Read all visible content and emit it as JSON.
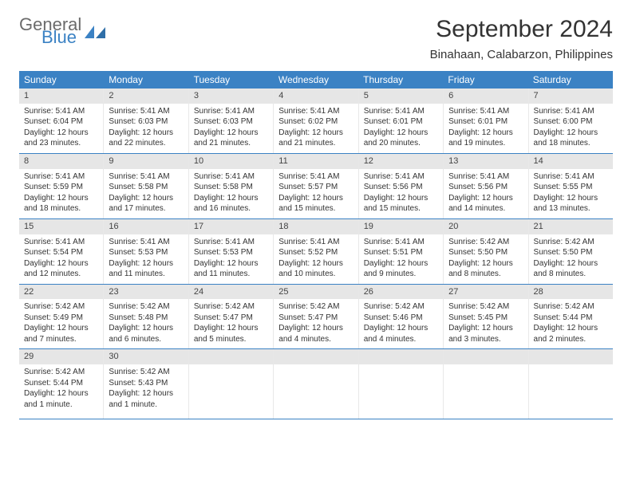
{
  "brand": {
    "general": "General",
    "blue": "Blue"
  },
  "header": {
    "title": "September 2024",
    "location": "Binahaan, Calabarzon, Philippines"
  },
  "colors": {
    "accent": "#3b82c4",
    "gray_bar": "#e6e6e6",
    "text": "#333333"
  },
  "weekdays": [
    "Sunday",
    "Monday",
    "Tuesday",
    "Wednesday",
    "Thursday",
    "Friday",
    "Saturday"
  ],
  "weeks": [
    [
      {
        "n": "1",
        "sr": "Sunrise: 5:41 AM",
        "ss": "Sunset: 6:04 PM",
        "d1": "Daylight: 12 hours",
        "d2": "and 23 minutes."
      },
      {
        "n": "2",
        "sr": "Sunrise: 5:41 AM",
        "ss": "Sunset: 6:03 PM",
        "d1": "Daylight: 12 hours",
        "d2": "and 22 minutes."
      },
      {
        "n": "3",
        "sr": "Sunrise: 5:41 AM",
        "ss": "Sunset: 6:03 PM",
        "d1": "Daylight: 12 hours",
        "d2": "and 21 minutes."
      },
      {
        "n": "4",
        "sr": "Sunrise: 5:41 AM",
        "ss": "Sunset: 6:02 PM",
        "d1": "Daylight: 12 hours",
        "d2": "and 21 minutes."
      },
      {
        "n": "5",
        "sr": "Sunrise: 5:41 AM",
        "ss": "Sunset: 6:01 PM",
        "d1": "Daylight: 12 hours",
        "d2": "and 20 minutes."
      },
      {
        "n": "6",
        "sr": "Sunrise: 5:41 AM",
        "ss": "Sunset: 6:01 PM",
        "d1": "Daylight: 12 hours",
        "d2": "and 19 minutes."
      },
      {
        "n": "7",
        "sr": "Sunrise: 5:41 AM",
        "ss": "Sunset: 6:00 PM",
        "d1": "Daylight: 12 hours",
        "d2": "and 18 minutes."
      }
    ],
    [
      {
        "n": "8",
        "sr": "Sunrise: 5:41 AM",
        "ss": "Sunset: 5:59 PM",
        "d1": "Daylight: 12 hours",
        "d2": "and 18 minutes."
      },
      {
        "n": "9",
        "sr": "Sunrise: 5:41 AM",
        "ss": "Sunset: 5:58 PM",
        "d1": "Daylight: 12 hours",
        "d2": "and 17 minutes."
      },
      {
        "n": "10",
        "sr": "Sunrise: 5:41 AM",
        "ss": "Sunset: 5:58 PM",
        "d1": "Daylight: 12 hours",
        "d2": "and 16 minutes."
      },
      {
        "n": "11",
        "sr": "Sunrise: 5:41 AM",
        "ss": "Sunset: 5:57 PM",
        "d1": "Daylight: 12 hours",
        "d2": "and 15 minutes."
      },
      {
        "n": "12",
        "sr": "Sunrise: 5:41 AM",
        "ss": "Sunset: 5:56 PM",
        "d1": "Daylight: 12 hours",
        "d2": "and 15 minutes."
      },
      {
        "n": "13",
        "sr": "Sunrise: 5:41 AM",
        "ss": "Sunset: 5:56 PM",
        "d1": "Daylight: 12 hours",
        "d2": "and 14 minutes."
      },
      {
        "n": "14",
        "sr": "Sunrise: 5:41 AM",
        "ss": "Sunset: 5:55 PM",
        "d1": "Daylight: 12 hours",
        "d2": "and 13 minutes."
      }
    ],
    [
      {
        "n": "15",
        "sr": "Sunrise: 5:41 AM",
        "ss": "Sunset: 5:54 PM",
        "d1": "Daylight: 12 hours",
        "d2": "and 12 minutes."
      },
      {
        "n": "16",
        "sr": "Sunrise: 5:41 AM",
        "ss": "Sunset: 5:53 PM",
        "d1": "Daylight: 12 hours",
        "d2": "and 11 minutes."
      },
      {
        "n": "17",
        "sr": "Sunrise: 5:41 AM",
        "ss": "Sunset: 5:53 PM",
        "d1": "Daylight: 12 hours",
        "d2": "and 11 minutes."
      },
      {
        "n": "18",
        "sr": "Sunrise: 5:41 AM",
        "ss": "Sunset: 5:52 PM",
        "d1": "Daylight: 12 hours",
        "d2": "and 10 minutes."
      },
      {
        "n": "19",
        "sr": "Sunrise: 5:41 AM",
        "ss": "Sunset: 5:51 PM",
        "d1": "Daylight: 12 hours",
        "d2": "and 9 minutes."
      },
      {
        "n": "20",
        "sr": "Sunrise: 5:42 AM",
        "ss": "Sunset: 5:50 PM",
        "d1": "Daylight: 12 hours",
        "d2": "and 8 minutes."
      },
      {
        "n": "21",
        "sr": "Sunrise: 5:42 AM",
        "ss": "Sunset: 5:50 PM",
        "d1": "Daylight: 12 hours",
        "d2": "and 8 minutes."
      }
    ],
    [
      {
        "n": "22",
        "sr": "Sunrise: 5:42 AM",
        "ss": "Sunset: 5:49 PM",
        "d1": "Daylight: 12 hours",
        "d2": "and 7 minutes."
      },
      {
        "n": "23",
        "sr": "Sunrise: 5:42 AM",
        "ss": "Sunset: 5:48 PM",
        "d1": "Daylight: 12 hours",
        "d2": "and 6 minutes."
      },
      {
        "n": "24",
        "sr": "Sunrise: 5:42 AM",
        "ss": "Sunset: 5:47 PM",
        "d1": "Daylight: 12 hours",
        "d2": "and 5 minutes."
      },
      {
        "n": "25",
        "sr": "Sunrise: 5:42 AM",
        "ss": "Sunset: 5:47 PM",
        "d1": "Daylight: 12 hours",
        "d2": "and 4 minutes."
      },
      {
        "n": "26",
        "sr": "Sunrise: 5:42 AM",
        "ss": "Sunset: 5:46 PM",
        "d1": "Daylight: 12 hours",
        "d2": "and 4 minutes."
      },
      {
        "n": "27",
        "sr": "Sunrise: 5:42 AM",
        "ss": "Sunset: 5:45 PM",
        "d1": "Daylight: 12 hours",
        "d2": "and 3 minutes."
      },
      {
        "n": "28",
        "sr": "Sunrise: 5:42 AM",
        "ss": "Sunset: 5:44 PM",
        "d1": "Daylight: 12 hours",
        "d2": "and 2 minutes."
      }
    ],
    [
      {
        "n": "29",
        "sr": "Sunrise: 5:42 AM",
        "ss": "Sunset: 5:44 PM",
        "d1": "Daylight: 12 hours",
        "d2": "and 1 minute."
      },
      {
        "n": "30",
        "sr": "Sunrise: 5:42 AM",
        "ss": "Sunset: 5:43 PM",
        "d1": "Daylight: 12 hours",
        "d2": "and 1 minute."
      },
      {
        "empty": true
      },
      {
        "empty": true
      },
      {
        "empty": true
      },
      {
        "empty": true
      },
      {
        "empty": true
      }
    ]
  ]
}
